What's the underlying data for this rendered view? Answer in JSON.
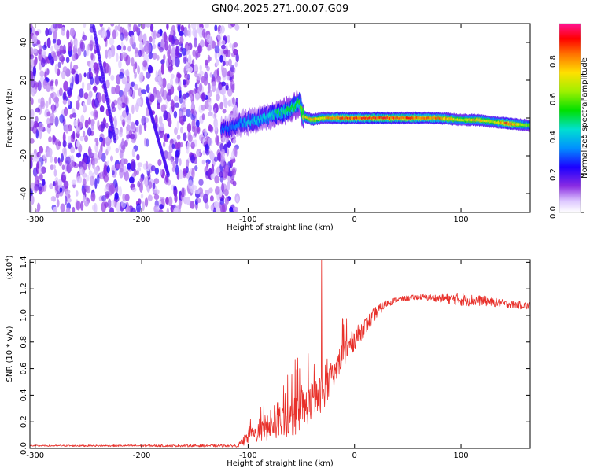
{
  "title": "GN04.2025.271.00.07.G09",
  "chart_data": [
    {
      "type": "heatmap",
      "title": "GN04.2025.271.00.07.G09",
      "xlabel": "Height of straight line (km)",
      "ylabel": "Frequency (Hz)",
      "xlim": [
        -305,
        165
      ],
      "ylim": [
        -50,
        50
      ],
      "xticks": [
        -300,
        -200,
        -100,
        0,
        100
      ],
      "yticks": [
        -40,
        -20,
        0,
        20,
        40
      ],
      "xtick_labels": [
        "-300",
        "-200",
        "-100",
        "0",
        "100"
      ],
      "ytick_labels": [
        "-40",
        "-20",
        "0",
        "20",
        "40"
      ],
      "noise_region_x": [
        -305,
        -110
      ],
      "ridge": [
        {
          "x": -120,
          "y": -6,
          "amp": 0.3
        },
        {
          "x": -110,
          "y": -3,
          "amp": 0.35
        },
        {
          "x": -100,
          "y": -2,
          "amp": 0.4
        },
        {
          "x": -90,
          "y": -1,
          "amp": 0.42
        },
        {
          "x": -80,
          "y": 1,
          "amp": 0.45
        },
        {
          "x": -70,
          "y": 3,
          "amp": 0.5
        },
        {
          "x": -60,
          "y": 5,
          "amp": 0.55
        },
        {
          "x": -52,
          "y": 8,
          "amp": 0.55
        },
        {
          "x": -48,
          "y": 1,
          "amp": 0.7
        },
        {
          "x": -40,
          "y": -1,
          "amp": 0.8
        },
        {
          "x": -30,
          "y": 0,
          "amp": 0.75
        },
        {
          "x": -20,
          "y": 0,
          "amp": 0.85
        },
        {
          "x": -10,
          "y": 0,
          "amp": 0.9
        },
        {
          "x": 0,
          "y": 0,
          "amp": 0.9
        },
        {
          "x": 20,
          "y": 0,
          "amp": 0.92
        },
        {
          "x": 50,
          "y": 0,
          "amp": 0.9
        },
        {
          "x": 80,
          "y": 0,
          "amp": 0.85
        },
        {
          "x": 100,
          "y": -1,
          "amp": 0.7
        },
        {
          "x": 115,
          "y": -1,
          "amp": 0.8
        },
        {
          "x": 130,
          "y": -2,
          "amp": 0.7
        },
        {
          "x": 145,
          "y": -3,
          "amp": 0.9
        },
        {
          "x": 165,
          "y": -4,
          "amp": 0.6
        }
      ],
      "colorbar": {
        "label": "Normalized spectral amplitude",
        "range": [
          0.0,
          1.0
        ],
        "ticks": [
          0.0,
          0.2,
          0.4,
          0.6,
          0.8
        ],
        "tick_labels": [
          "0.0",
          "0.2",
          "0.4",
          "0.6",
          "0.8"
        ]
      }
    },
    {
      "type": "line",
      "xlabel": "Height of straight line (km)",
      "ylabel": "SNR (10 * v/v)",
      "scale_label": "(x10",
      "scale_exp": "4",
      "scale_close": ")",
      "xlim": [
        -305,
        165
      ],
      "ylim": [
        0,
        1.42
      ],
      "xticks": [
        -300,
        -200,
        -100,
        0,
        100
      ],
      "yticks": [
        0.0,
        0.2,
        0.4,
        0.6,
        0.8,
        1.0,
        1.2,
        1.4
      ],
      "xtick_labels": [
        "-300",
        "-200",
        "-100",
        "0",
        "100"
      ],
      "ytick_labels": [
        "0.0",
        "0.2",
        "0.4",
        "0.6",
        "0.8",
        "1.0",
        "1.2",
        "1.4"
      ],
      "color": "#e8302a",
      "envelope": {
        "x": [
          -305,
          -110,
          -100,
          -80,
          -60,
          -50,
          -40,
          -30,
          -20,
          -10,
          0,
          10,
          20,
          30,
          40,
          60,
          80,
          100,
          120,
          140,
          165
        ],
        "y": [
          0.02,
          0.02,
          0.08,
          0.16,
          0.22,
          0.28,
          0.35,
          0.42,
          0.55,
          0.72,
          0.82,
          0.92,
          1.02,
          1.09,
          1.12,
          1.14,
          1.13,
          1.12,
          1.11,
          1.09,
          1.07
        ],
        "spread": [
          0.005,
          0.01,
          0.05,
          0.1,
          0.14,
          0.16,
          0.14,
          0.14,
          0.12,
          0.1,
          0.08,
          0.07,
          0.05,
          0.03,
          0.02,
          0.02,
          0.03,
          0.05,
          0.04,
          0.03,
          0.03
        ]
      },
      "spike": {
        "x": -31,
        "y": 1.44
      }
    }
  ]
}
